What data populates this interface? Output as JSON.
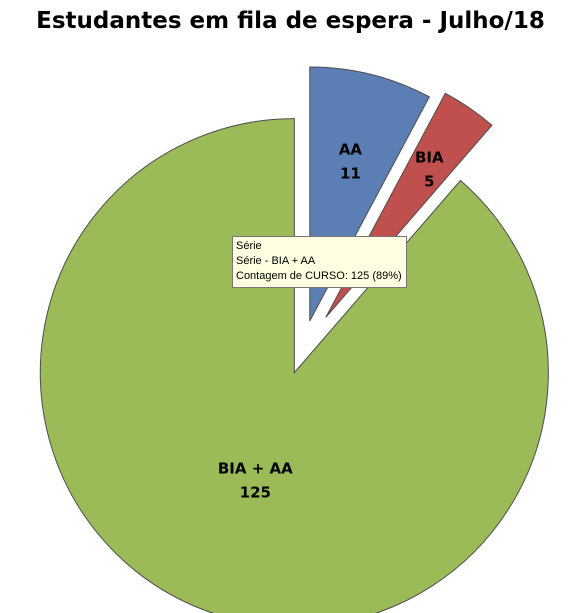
{
  "chart_data": {
    "type": "pie",
    "title": "Estudantes em fila de espera - Julho/18",
    "slices": [
      {
        "label": "AA",
        "value": 11,
        "color": "#5b7fb4"
      },
      {
        "label": "BIA",
        "value": 5,
        "color": "#c0504d"
      },
      {
        "label": "BIA + AA",
        "value": 125,
        "color": "#9bbb59"
      }
    ],
    "exploded": true
  },
  "tooltip": {
    "line1": "Série",
    "line2": "Série - BIA + AA",
    "line3": "Contagem de CURSO: 125 (89%)"
  }
}
